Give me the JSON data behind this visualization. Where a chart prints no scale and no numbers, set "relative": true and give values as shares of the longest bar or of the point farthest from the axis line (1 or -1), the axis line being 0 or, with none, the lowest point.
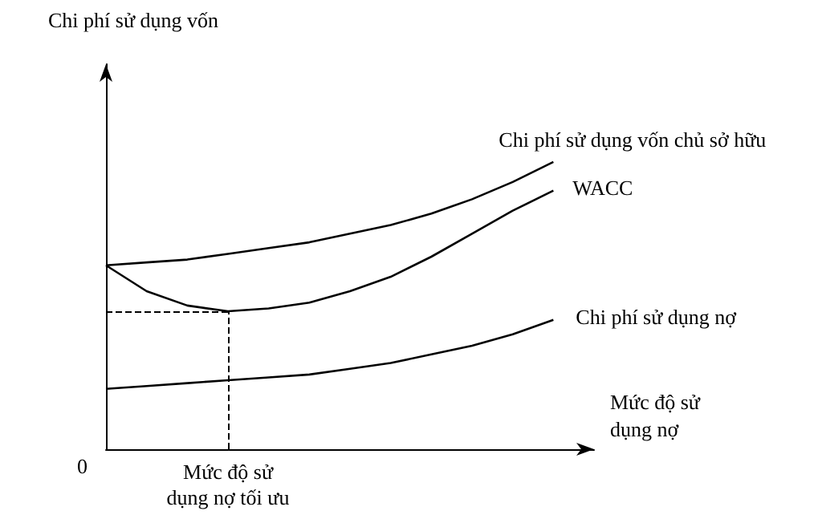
{
  "chart_data": {
    "type": "line",
    "relative": true,
    "xlabel": "Mức độ sử\ndụng nợ",
    "annotations": [
      "Chi phí sử dụng vốn",
      "0",
      "Mức độ sử\ndụng nợ tối ưu"
    ],
    "grid": false,
    "legend": false,
    "marker": "none",
    "line_style": "solid",
    "categories": [
      null,
      null,
      null,
      null,
      null,
      null,
      null,
      null,
      null,
      null,
      null,
      null,
      null
    ],
    "series": [
      {
        "name": "Chi phí sử dụng vốn chủ sở hữu",
        "color": "#000000",
        "values": [
          0.64,
          0.65,
          0.66,
          0.68,
          0.7,
          0.72,
          0.75,
          0.78,
          0.82,
          0.87,
          0.93,
          1,
          null
        ]
      },
      {
        "name": "WACC",
        "color": "#000000",
        "values": [
          0.64,
          0.55,
          0.5,
          0.48,
          0.49,
          0.51,
          0.55,
          0.6,
          0.67,
          0.75,
          0.83,
          0.9,
          null
        ]
      },
      {
        "name": "Chi phí sử dụng nợ",
        "color": "#000000",
        "values": [
          0.21,
          0.22,
          0.23,
          0.24,
          0.25,
          0.26,
          0.28,
          0.3,
          0.33,
          0.36,
          0.4,
          0.45,
          null
        ]
      }
    ],
    "ref_lines": [
      {
        "axis": "y",
        "value": 0.48,
        "line_style": "dashed"
      }
    ]
  }
}
